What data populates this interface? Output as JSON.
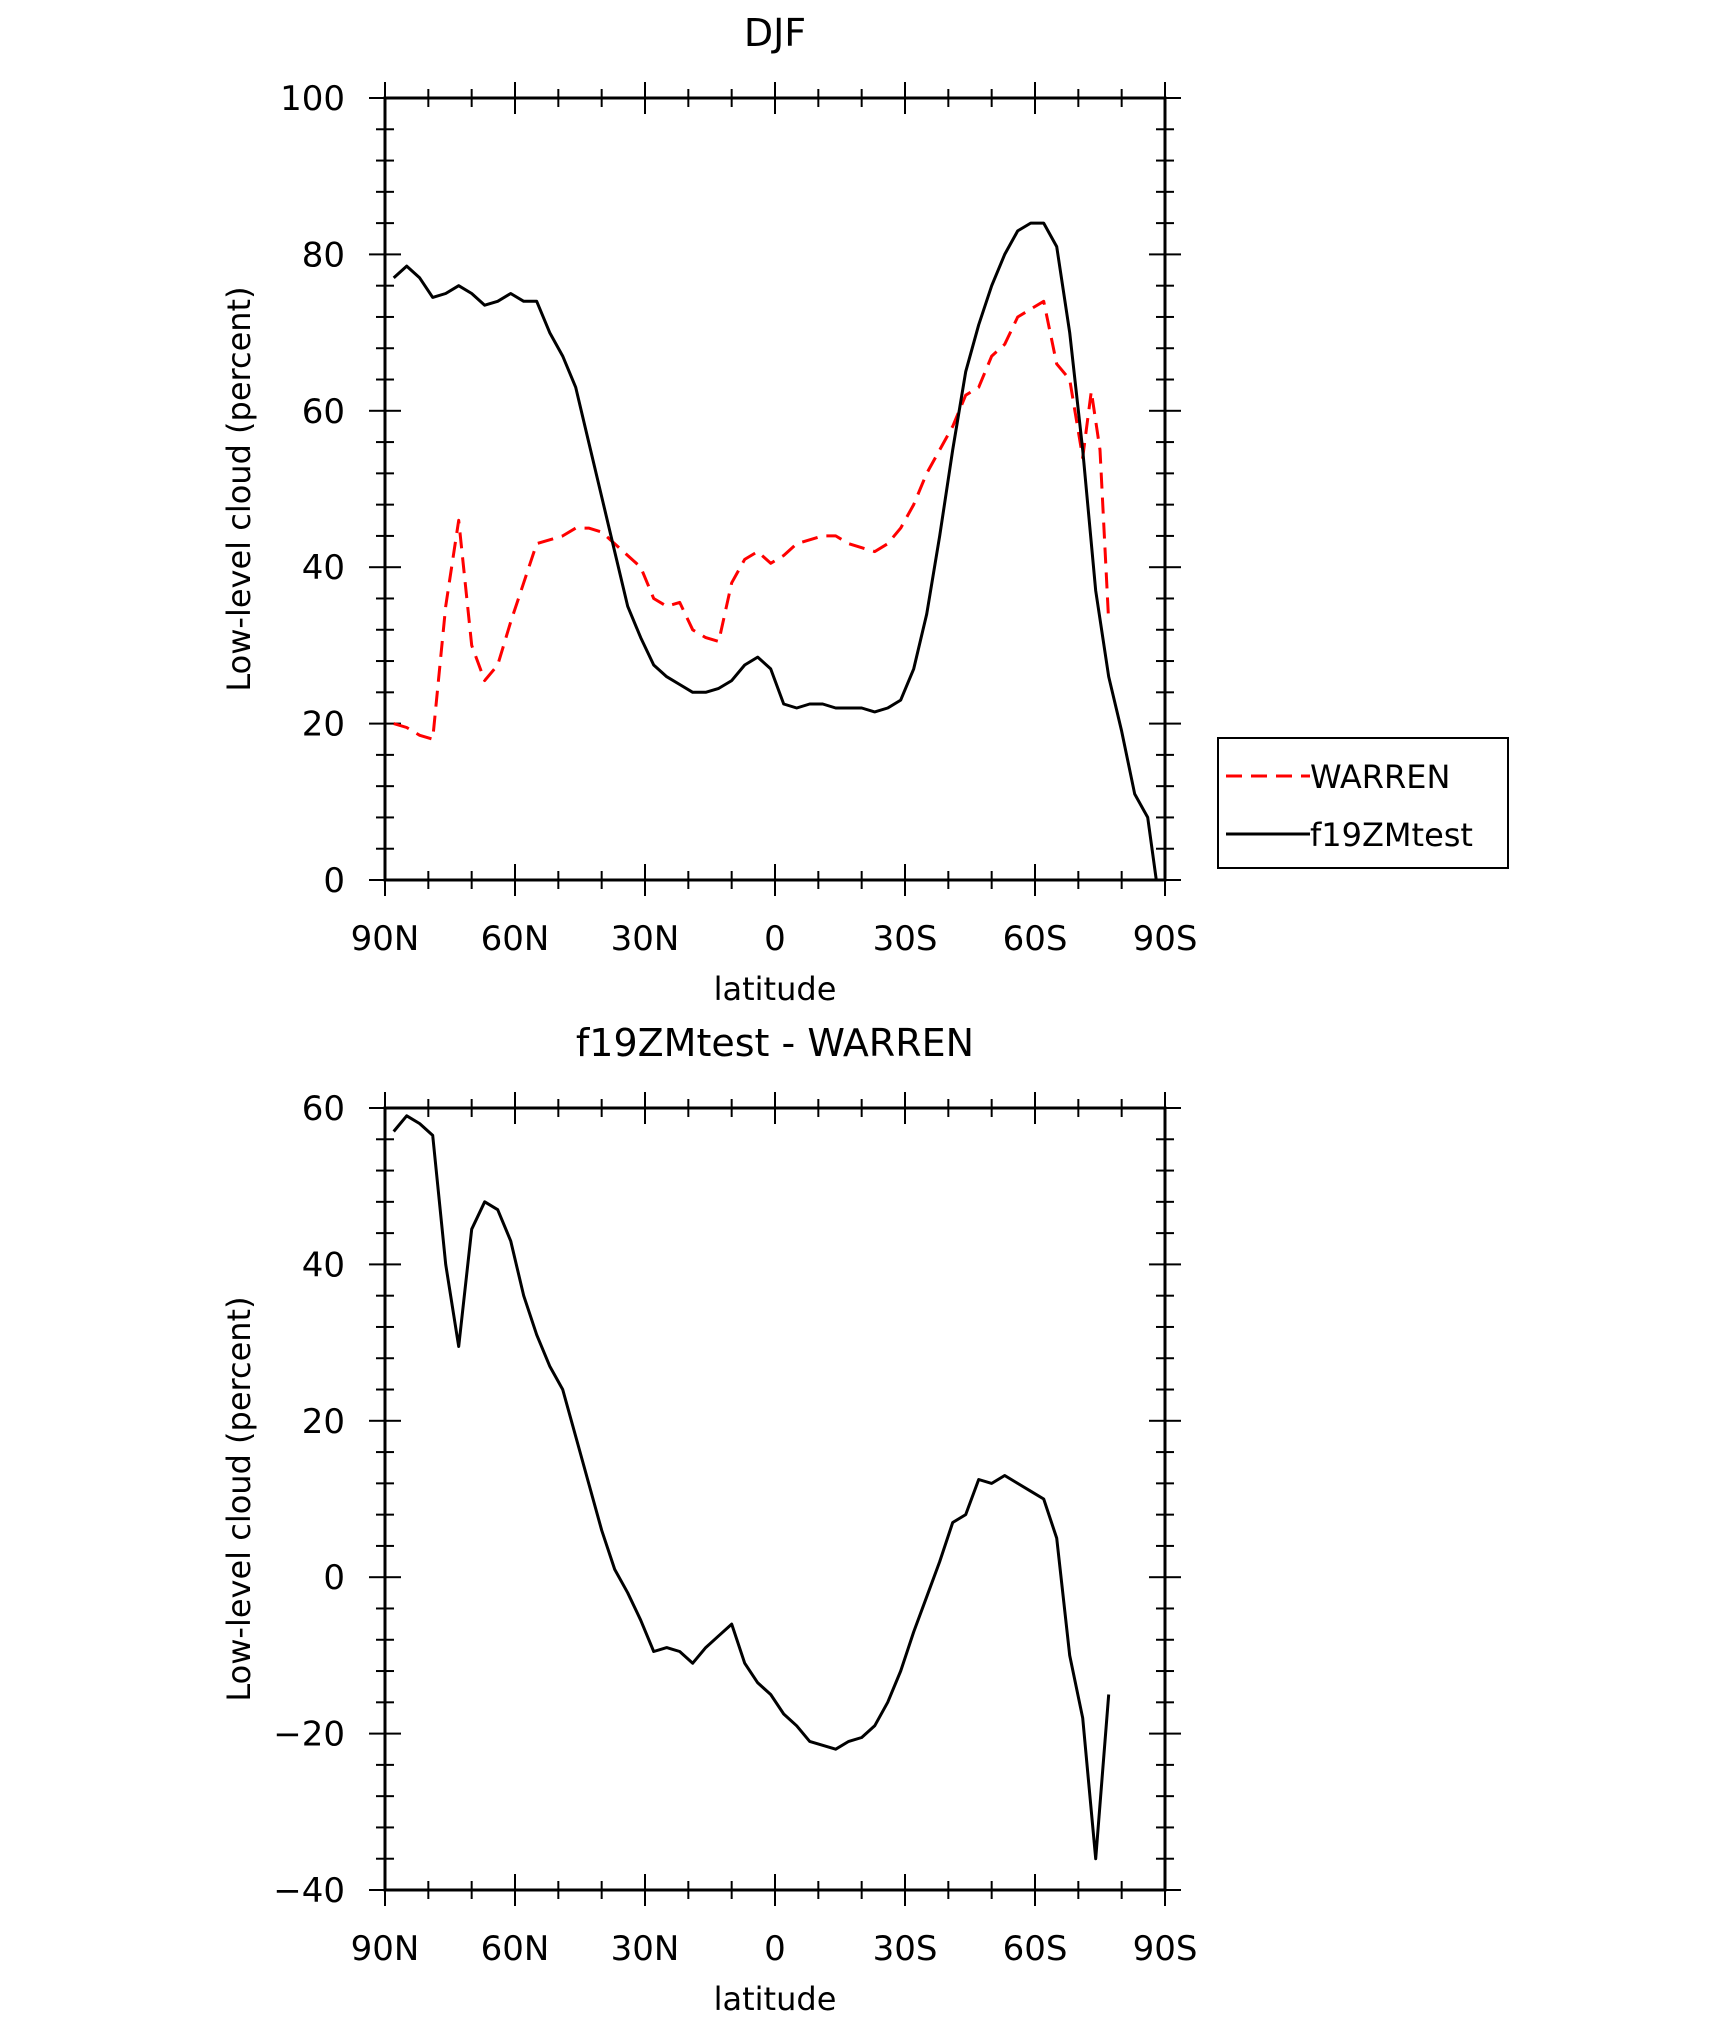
{
  "chart_data": [
    {
      "type": "line",
      "title": "DJF",
      "xlabel": "latitude",
      "ylabel": "Low-level cloud (percent)",
      "xlim": [
        90,
        -90
      ],
      "ylim": [
        0,
        100
      ],
      "xticks": [
        90,
        60,
        30,
        0,
        -30,
        -60,
        -90
      ],
      "xtick_labels": [
        "90N",
        "60N",
        "30N",
        "0",
        "30S",
        "60S",
        "90S"
      ],
      "yticks": [
        0,
        20,
        40,
        60,
        80,
        100
      ],
      "ytick_labels": [
        "0",
        "20",
        "40",
        "60",
        "80",
        "100"
      ],
      "legend_position": "right",
      "series": [
        {
          "name": "WARREN",
          "color": "#ff0000",
          "style": "dashed",
          "x": [
            88,
            85,
            82,
            79,
            76,
            73,
            70,
            67,
            64,
            61,
            58,
            55,
            52,
            49,
            46,
            43,
            40,
            37,
            34,
            31,
            28,
            25,
            22,
            19,
            16,
            13,
            10,
            7,
            4,
            1,
            -2,
            -5,
            -8,
            -11,
            -14,
            -17,
            -20,
            -23,
            -26,
            -29,
            -32,
            -35,
            -38,
            -41,
            -44,
            -47,
            -50,
            -53,
            -56,
            -59,
            -62,
            -65,
            -68,
            -71,
            -73,
            -75,
            -77
          ],
          "y": [
            20,
            19.5,
            18.5,
            18,
            35,
            46,
            30,
            25.5,
            27.5,
            33,
            38,
            43,
            43.5,
            44,
            45,
            45,
            44.5,
            43,
            41.5,
            40,
            36,
            35,
            35.5,
            32,
            31,
            30.5,
            38,
            41,
            42,
            40.5,
            41.5,
            43,
            43.5,
            44,
            44,
            43,
            42.5,
            42,
            43,
            45,
            48,
            52,
            55,
            58,
            62,
            63,
            67,
            68.5,
            72,
            73,
            74,
            66,
            64,
            54,
            62.5,
            55,
            33
          ]
        },
        {
          "name": "f19ZMtest",
          "color": "#000000",
          "style": "solid",
          "x": [
            88,
            85,
            82,
            79,
            76,
            73,
            70,
            67,
            64,
            61,
            58,
            55,
            52,
            49,
            46,
            43,
            40,
            37,
            34,
            31,
            28,
            25,
            22,
            19,
            16,
            13,
            10,
            7,
            4,
            1,
            -2,
            -5,
            -8,
            -11,
            -14,
            -17,
            -20,
            -23,
            -26,
            -29,
            -32,
            -35,
            -38,
            -41,
            -44,
            -47,
            -50,
            -53,
            -56,
            -59,
            -62,
            -65,
            -68,
            -71,
            -74,
            -77,
            -80,
            -83,
            -86,
            -88
          ],
          "y": [
            77,
            78.5,
            77,
            74.5,
            75,
            76,
            75,
            73.5,
            74,
            75,
            74,
            74,
            70,
            67,
            63,
            56,
            49,
            42,
            35,
            31,
            27.5,
            26,
            25,
            24,
            24,
            24.5,
            25.5,
            27.5,
            28.5,
            27,
            22.5,
            22,
            22.5,
            22.5,
            22,
            22,
            22,
            21.5,
            22,
            23,
            27,
            34,
            44,
            55,
            65,
            71,
            76,
            80,
            83,
            84,
            84,
            81,
            70,
            55,
            37,
            26,
            19,
            11,
            8,
            0
          ]
        }
      ]
    },
    {
      "type": "line",
      "title": "f19ZMtest - WARREN",
      "xlabel": "latitude",
      "ylabel": "Low-level cloud (percent)",
      "xlim": [
        90,
        -90
      ],
      "ylim": [
        -40,
        60
      ],
      "xticks": [
        90,
        60,
        30,
        0,
        -30,
        -60,
        -90
      ],
      "xtick_labels": [
        "90N",
        "60N",
        "30N",
        "0",
        "30S",
        "60S",
        "90S"
      ],
      "yticks": [
        -40,
        -20,
        0,
        20,
        40,
        60
      ],
      "ytick_labels": [
        "−40",
        "−20",
        "0",
        "20",
        "40",
        "60"
      ],
      "series": [
        {
          "color": "#000000",
          "style": "solid",
          "x": [
            88,
            85,
            82,
            79,
            76,
            73,
            70,
            67,
            64,
            61,
            58,
            55,
            52,
            49,
            46,
            43,
            40,
            37,
            34,
            31,
            28,
            25,
            22,
            19,
            16,
            13,
            10,
            7,
            4,
            1,
            -2,
            -5,
            -8,
            -11,
            -14,
            -17,
            -20,
            -23,
            -26,
            -29,
            -32,
            -35,
            -38,
            -41,
            -44,
            -47,
            -50,
            -53,
            -56,
            -59,
            -62,
            -65,
            -68,
            -71,
            -74,
            -77
          ],
          "y": [
            57,
            59,
            58,
            56.5,
            40,
            29.5,
            44.5,
            48,
            47,
            43,
            36,
            31,
            27,
            24,
            18,
            12,
            6,
            1,
            -2,
            -5.5,
            -9.5,
            -9,
            -9.5,
            -11,
            -9,
            -7.5,
            -6,
            -11,
            -13.5,
            -15,
            -17.5,
            -19,
            -21,
            -21.5,
            -22,
            -21,
            -20.5,
            -19,
            -16,
            -12,
            -7,
            -2.5,
            2,
            7,
            8,
            12.5,
            12,
            13,
            12,
            11,
            10,
            5,
            -10,
            -18,
            -36,
            -15
          ]
        }
      ]
    }
  ]
}
